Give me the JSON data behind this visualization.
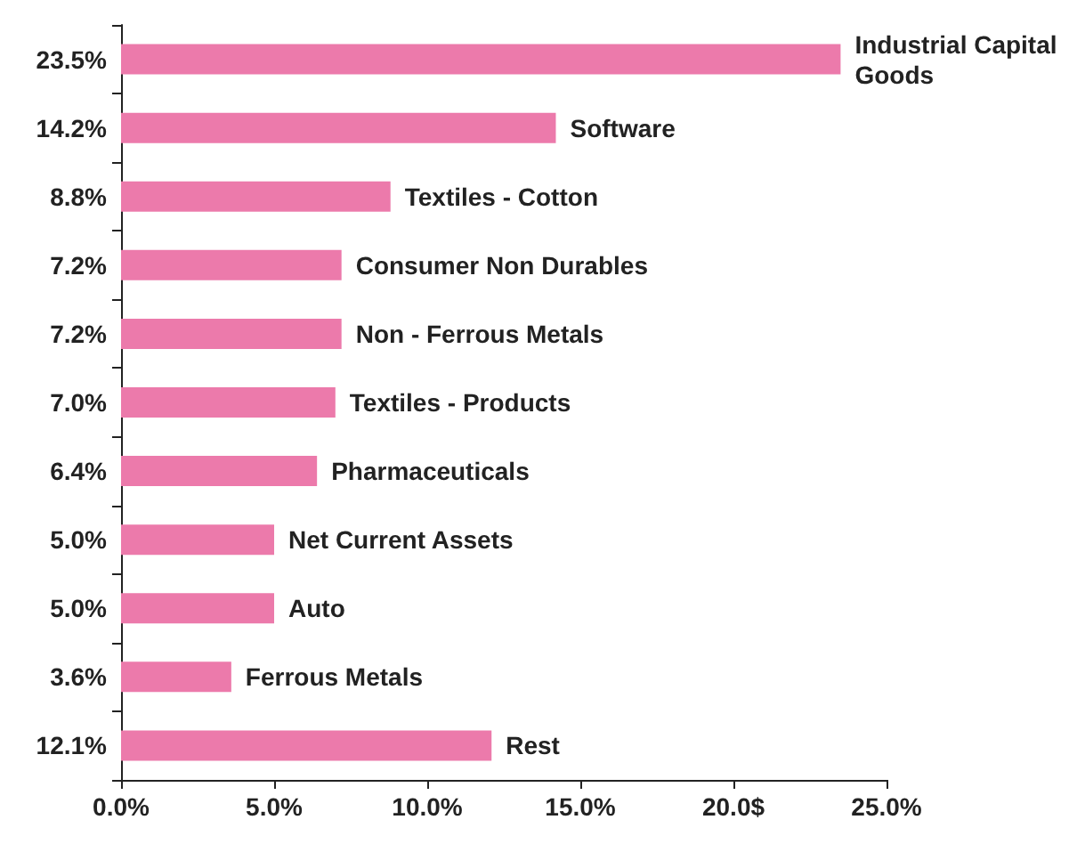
{
  "chart_data": {
    "type": "bar",
    "orientation": "horizontal",
    "categories": [
      "Industrial Capital Goods",
      "Software",
      "Textiles - Cotton",
      "Consumer Non Durables",
      "Non - Ferrous Metals",
      "Textiles - Products",
      "Pharmaceuticals",
      "Net Current Assets",
      "Auto",
      "Ferrous Metals",
      "Rest"
    ],
    "values": [
      23.5,
      14.2,
      8.8,
      7.2,
      7.2,
      7.0,
      6.4,
      5.0,
      5.0,
      3.6,
      12.1
    ],
    "value_labels": [
      "23.5%",
      "14.2%",
      "8.8%",
      "7.2%",
      "7.2%",
      "7.0%",
      "6.4%",
      "5.0%",
      "5.0%",
      "3.6%",
      "12.1%"
    ],
    "color": "#ec7aab",
    "xlim": [
      0,
      25
    ],
    "xticks": [
      {
        "value": 0,
        "label": "0.0%"
      },
      {
        "value": 5,
        "label": "5.0%"
      },
      {
        "value": 10,
        "label": "10.0%"
      },
      {
        "value": 15,
        "label": "15.0%"
      },
      {
        "value": 20,
        "label": "20.0$"
      },
      {
        "value": 25,
        "label": "25.0%"
      }
    ],
    "grid": false
  }
}
